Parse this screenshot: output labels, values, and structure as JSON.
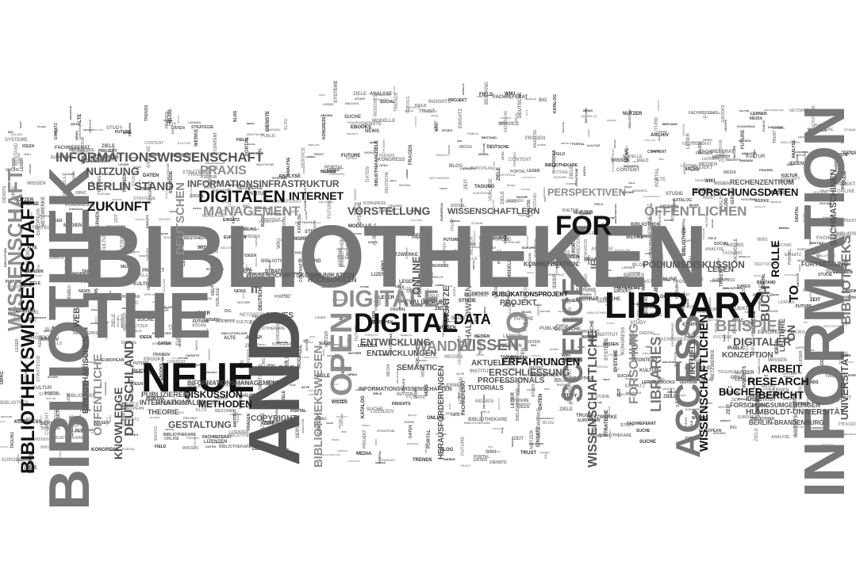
{
  "cloud": {
    "words": {
      "bibliotheken": "BIBLIOTHEKEN",
      "information": "INFORMATION",
      "bibliothek": "BIBLIOTHEK",
      "and": "AND",
      "the": "THE",
      "library": "LIBRARY",
      "neue": "NEUE",
      "access": "ACCESS",
      "digital": "DIGITAL",
      "digitale": "DIGITALE",
      "open": "OPEN",
      "of": "OF",
      "for": "FOR",
      "science": "SCIENCE",
      "bibliothekswissenschaft": "BIBLIOTHEKSWISSENSCHAFT",
      "wissenschaft": "WISSENSCHAFT",
      "bibliothekswesen": "BIBLIOTHEKSWESEN",
      "bibliotheks": "BIBLIOTHEKS",
      "informationswissenschaft": "INFORMATIONSWISSENSCHAFT",
      "digitalen": "DIGITALEN",
      "zukunft": "ZUKUNFT",
      "management": "MANAGEMENT",
      "praxis": "PRAXIS",
      "berlin_stand": "BERLIN STAND",
      "nutzung": "NUTZUNG",
      "informationsinfrastruktur": "INFORMATIONSINFRASTRUKTUR",
      "internet": "INTERNET",
      "perspektiven": "PERSPEKTIVEN",
      "oeffentlichen": "ÖFFENTLICHEN",
      "forschungsdaten": "FORSCHUNGSDATEN",
      "wissenschaftlern": "WISSENSCHAFTLERN",
      "vorstellung": "VORSTELLUNG",
      "deutschen": "DEUTSCHEN",
      "deutschland": "DEUTSCHLAND",
      "oeffentliche": "ÖFFENTLICHE",
      "knowledge": "KNOWLEDGE",
      "bibliotharischen": "BIBLIOTHARISCHEN",
      "gestaltung": "GESTALTUNG",
      "diskussion": "DISKUSSION",
      "methoden": "METHODEN",
      "data": "DATA",
      "wandel": "WANDEL",
      "wissen": "WISSEN",
      "online": "ONLINE",
      "entwicklung": "ENTWICKLUNG",
      "entwicklungen": "ENTWICKLUNGEN",
      "erfahrungen": "ERFAHRUNGEN",
      "erschliessung": "ERSCHLIESSUNG",
      "wissenschaftliche": "WISSENSCHAFTLICHE",
      "forschung": "FORSCHUNG",
      "libraries": "LIBRARIES",
      "beispiel": "BEISPIEL",
      "digitaler": "DIGITALER",
      "research": "RESEARCH",
      "arbeit": "ARBEIT",
      "buecher": "BÜCHER",
      "bericht": "BERICHT",
      "humboldt": "HUMBOLDT-UNIVERSITÄT",
      "rolle": "ROLLE",
      "buch": "BUCH",
      "wissenschaftlichen": "WISSENSCHAFTLICHEN",
      "to": "TO",
      "on": "ON",
      "virtuelle": "VIRTUELLE",
      "ib": "IB",
      "suchmaschinen": "SUCHMASCHINEN",
      "universitaet": "UNIVERSITÄT",
      "podiumsdiskussion": "PODIUMSDISKUSSION",
      "halloween": "HALLOWEEN",
      "neues": "NEUES",
      "web": "WEB",
      "lecture": "LECTURE",
      "copyright": "COPYRIGHT",
      "lesen": "LESEN",
      "konzeption": "KONZEPTION",
      "publikationsprojekt": "PUBLIKATIONSPROJEKT",
      "professionals": "PROFESSIONALS",
      "internationalen": "INTERNATIONALEN",
      "evaluierung": "EVALUIERUNG",
      "projekt": "PROJEKT",
      "aktuelle": "AKTUELLE",
      "tutorials": "TUTORIALS",
      "semantic": "SEMANTIC",
      "theorie": "THEORIE",
      "publizieren": "PUBLIZIEREN",
      "ansaetze": "ANSÄTZE",
      "herausforderungen": "HERAUSFORDERUNGEN",
      "it": "IT",
      "informationsmanagement": "INFORMATIONSMANAGEMENT",
      "kommunikation": "KOMMUNIKATION",
      "wissenschaftskommunikation": "WISSENSCHAFTSKOMMUNIKATION",
      "forschungsumgebungen": "FORSCHUNGSUMGEBUNGEN",
      "berlin_brandenburg": "BERLIN-BRANDENBURG",
      "rechenzentrum": "RECHENZENTRUM",
      "hochschulen": "HOCHSCHULEN",
      "informationswissenschaften": "INFORMATIONSWISSENSCHAFTEN",
      "idee": "IDEE",
      "fortsetzung": "FORTSETZUNG"
    },
    "filler_words": [
      "BIBLIOTHEK",
      "NETZWERKE",
      "DEUTSCHE",
      "LERNEN",
      "MEDIEN",
      "STUDIE",
      "ARCHIV",
      "WISSEN",
      "DATEN",
      "INSTITUT",
      "SERVICE",
      "KATALOG",
      "DIGITAL",
      "EBOOKS",
      "PROJEKT",
      "CONTENT",
      "SOCIAL",
      "FUTURE",
      "EUROPEAN",
      "MODELLE",
      "TAGUNG",
      "STUDY",
      "EINSATZ",
      "BIG",
      "FIELD",
      "ANALYSE",
      "FRAGEN",
      "KULTUR",
      "ALTE",
      "SUCHE",
      "VERLAGE",
      "LESER",
      "ZEIT",
      "ONLINE",
      "DIENSTE",
      "OPAC",
      "IDEEN",
      "TRENDS",
      "SYSTEME",
      "PORTAL",
      "NUTZER",
      "MEDIA",
      "PUBLIC",
      "TRUST",
      "WIKI",
      "BLOG",
      "NEWS",
      "BIBLIOTHEKARE",
      "BESTAND",
      "WERKE",
      "ZIELE",
      "FACHREFERAT",
      "KONGRESS",
      "LIZENZEN",
      "INSIGHTS",
      "STRATEGIE"
    ],
    "colors": {
      "dark": "#111111",
      "gray": "#777777",
      "mid": "#555555",
      "light": "#a0a0a0"
    }
  }
}
